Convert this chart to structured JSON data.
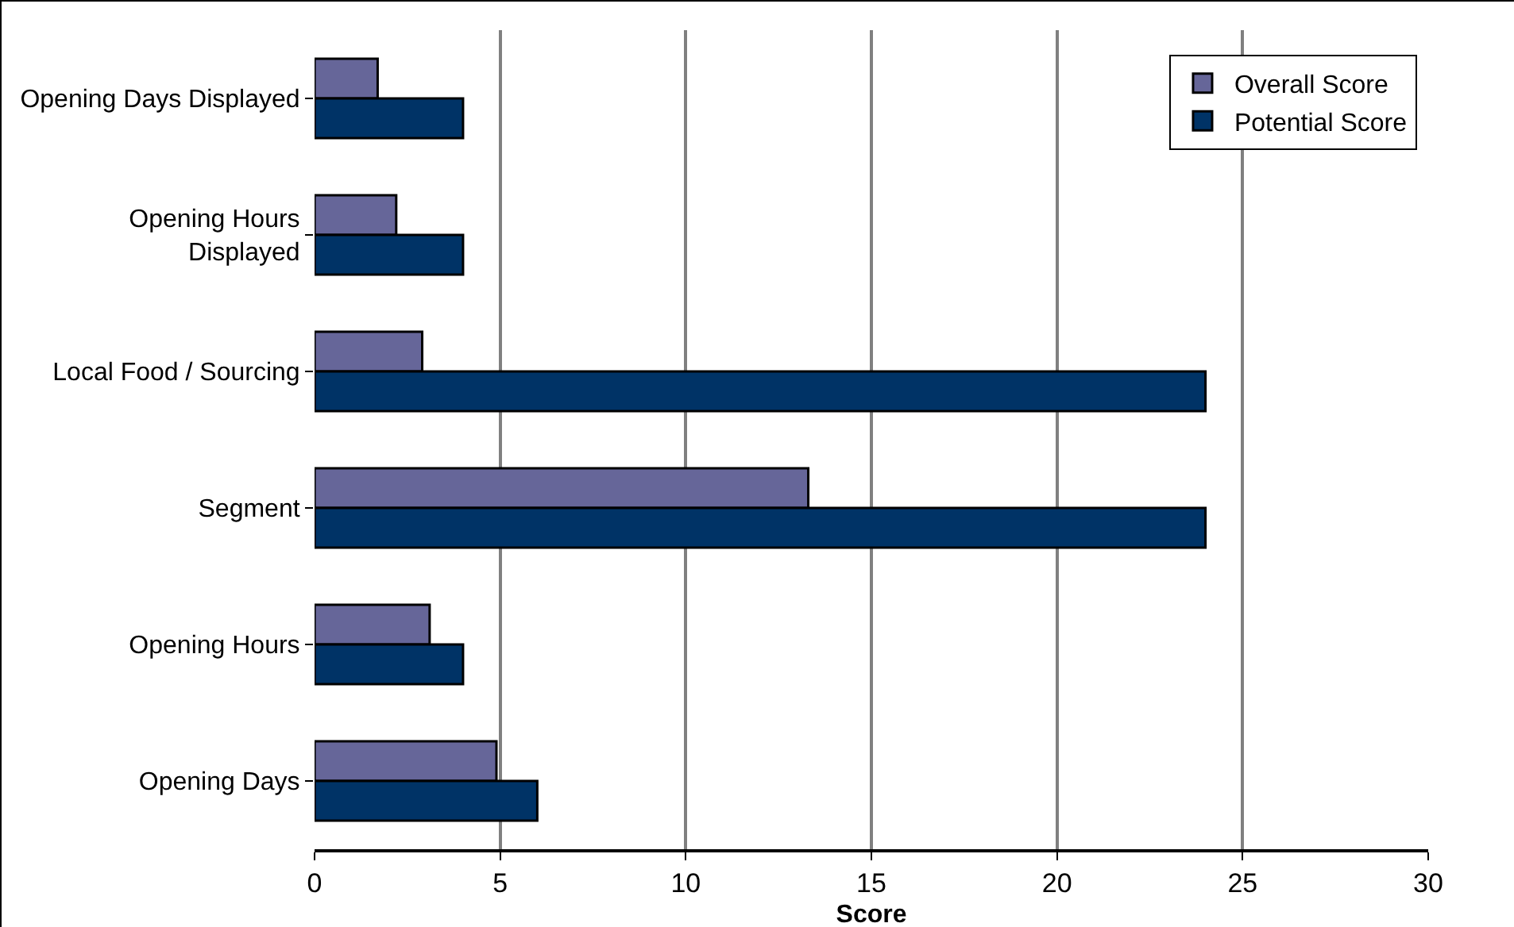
{
  "chart_data": {
    "type": "bar",
    "orientation": "horizontal",
    "xlabel": "Score",
    "categories": [
      "Opening Days Displayed",
      "Opening Hours Displayed",
      "Local Food / Sourcing",
      "Segment",
      "Opening Hours",
      "Opening Days"
    ],
    "series": [
      {
        "name": "Overall Score",
        "color": "#666699",
        "values": [
          1.7,
          2.2,
          2.9,
          13.3,
          3.1,
          4.9
        ]
      },
      {
        "name": "Potential Score",
        "color": "#003366",
        "values": [
          4,
          4,
          24,
          24,
          4,
          6
        ]
      }
    ],
    "xlim": [
      0,
      30
    ],
    "xticks": [
      0,
      5,
      10,
      15,
      20,
      25,
      30
    ],
    "grid": "x",
    "legend": "top right"
  }
}
